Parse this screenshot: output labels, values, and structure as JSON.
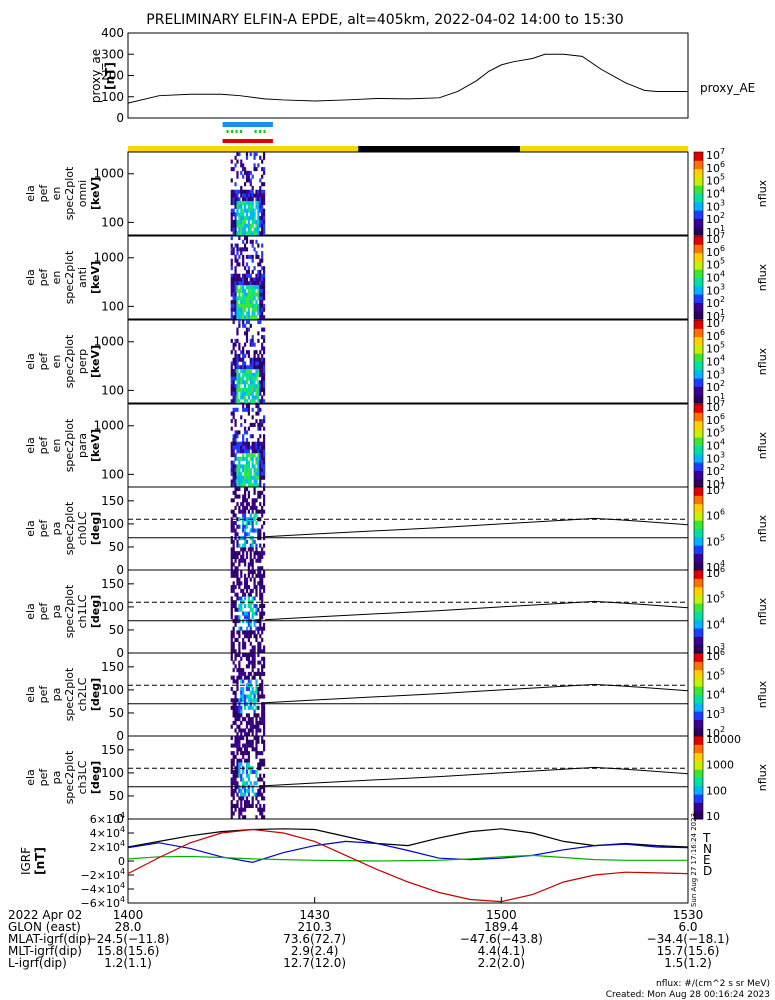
{
  "title": "PRELIMINARY ELFIN-A EPDE, alt=405km, 2022-04-02 14:00 to 15:30",
  "chart_data": [
    {
      "type": "line",
      "panel": "proxy_ae",
      "ylabel": [
        "proxy_ae",
        "[nT]"
      ],
      "legend": "proxy_AE",
      "ylim": [
        0,
        400
      ],
      "yticks": [
        0,
        100,
        200,
        300,
        400
      ],
      "x_minutes": [
        0,
        5,
        10,
        15,
        18,
        22,
        25,
        30,
        35,
        40,
        45,
        50,
        53,
        56,
        58,
        60,
        62,
        65,
        67,
        70,
        73,
        76,
        80,
        83,
        85,
        90
      ],
      "values": [
        70,
        105,
        112,
        112,
        105,
        90,
        85,
        80,
        85,
        92,
        90,
        95,
        125,
        175,
        220,
        250,
        265,
        280,
        300,
        300,
        290,
        230,
        165,
        130,
        125,
        125
      ]
    },
    {
      "type": "line",
      "panel": "status_bar",
      "segments": [
        {
          "start": 0,
          "end": 37,
          "color": "#f5d800"
        },
        {
          "start": 37,
          "end": 63,
          "color": "#000000"
        },
        {
          "start": 63,
          "end": 90,
          "color": "#f5d800"
        }
      ],
      "science_markers": {
        "start": 16,
        "end": 22,
        "colors": [
          "#1e8fe8",
          "#00d000",
          "#e00000"
        ]
      }
    },
    {
      "type": "heatmap",
      "panel": "omni",
      "ylabel": [
        "ela",
        "pef",
        "en",
        "spec2plot",
        "omni",
        "[keV]"
      ],
      "y_log": true,
      "yticks": [
        100,
        1000
      ],
      "ylim": [
        55,
        2800
      ],
      "zlabel": "nflux",
      "z_range": [
        10,
        10000000
      ],
      "z_ticks": [
        "10^1",
        "10^2",
        "10^3",
        "10^4",
        "10^5",
        "10^6",
        "10^7"
      ],
      "active_interval_minutes": [
        16.5,
        22
      ]
    },
    {
      "type": "heatmap",
      "panel": "anti",
      "ylabel": [
        "ela",
        "pef",
        "en",
        "spec2plot",
        "anti",
        "[keV]"
      ],
      "y_log": true,
      "yticks": [
        100,
        1000
      ],
      "ylim": [
        55,
        2800
      ],
      "zlabel": "nflux",
      "z_range": [
        10,
        10000000
      ],
      "z_ticks": [
        "10^1",
        "10^2",
        "10^3",
        "10^4",
        "10^5",
        "10^6",
        "10^7"
      ],
      "active_interval_minutes": [
        16.5,
        22
      ]
    },
    {
      "type": "heatmap",
      "panel": "perp",
      "ylabel": [
        "ela",
        "pef",
        "en",
        "spec2plot",
        "perp",
        "[keV]"
      ],
      "y_log": true,
      "yticks": [
        100,
        1000
      ],
      "ylim": [
        55,
        2800
      ],
      "zlabel": "nflux",
      "z_range": [
        10,
        10000000
      ],
      "z_ticks": [
        "10^1",
        "10^2",
        "10^3",
        "10^4",
        "10^5",
        "10^6",
        "10^7"
      ],
      "active_interval_minutes": [
        16.5,
        22
      ]
    },
    {
      "type": "heatmap",
      "panel": "para",
      "ylabel": [
        "ela",
        "pef",
        "en",
        "spec2plot",
        "para",
        "[keV]"
      ],
      "y_log": true,
      "yticks": [
        100,
        1000
      ],
      "ylim": [
        55,
        2800
      ],
      "zlabel": "nflux",
      "z_range": [
        10,
        10000000
      ],
      "z_ticks": [
        "10^1",
        "10^2",
        "10^3",
        "10^4",
        "10^5",
        "10^6",
        "10^7"
      ],
      "active_interval_minutes": [
        16.5,
        22
      ]
    },
    {
      "type": "heatmap",
      "panel": "ch0LC",
      "ylabel": [
        "ela",
        "pef",
        "pa",
        "spec2plot",
        "ch0LC",
        "[deg]"
      ],
      "ylim": [
        0,
        180
      ],
      "yticks": [
        0,
        50,
        100,
        150
      ],
      "zlabel": "nflux",
      "z_ticks": [
        "10^4",
        "10^5",
        "10^6",
        "10^7"
      ],
      "active_interval_minutes": [
        16.5,
        22
      ]
    },
    {
      "type": "heatmap",
      "panel": "ch1LC",
      "ylabel": [
        "ela",
        "pef",
        "pa",
        "spec2plot",
        "ch1LC",
        "[deg]"
      ],
      "ylim": [
        0,
        180
      ],
      "yticks": [
        0,
        50,
        100,
        150
      ],
      "zlabel": "nflux",
      "z_ticks": [
        "10^3",
        "10^4",
        "10^5",
        "10^6"
      ],
      "active_interval_minutes": [
        16.5,
        22
      ]
    },
    {
      "type": "heatmap",
      "panel": "ch2LC",
      "ylabel": [
        "ela",
        "pef",
        "pa",
        "spec2plot",
        "ch2LC",
        "[deg]"
      ],
      "ylim": [
        0,
        180
      ],
      "yticks": [
        0,
        50,
        100,
        150
      ],
      "zlabel": "nflux",
      "z_ticks": [
        "10^2",
        "10^3",
        "10^4",
        "10^5",
        "10^6"
      ],
      "active_interval_minutes": [
        16.5,
        22
      ]
    },
    {
      "type": "heatmap",
      "panel": "ch3LC",
      "ylabel": [
        "ela",
        "pef",
        "pa",
        "spec2plot",
        "ch3LC",
        "[deg]"
      ],
      "ylim": [
        0,
        180
      ],
      "yticks": [
        0,
        50,
        100,
        150
      ],
      "zlabel": "nflux",
      "z_ticks": [
        "10",
        "100",
        "1000",
        "10000"
      ],
      "active_interval_minutes": [
        16.5,
        22
      ]
    },
    {
      "type": "line",
      "panel": "losscone_overlay",
      "x_minutes": [
        22,
        30,
        40,
        50,
        60,
        70,
        75,
        80,
        90
      ],
      "rising_line": [
        72,
        78,
        85,
        92,
        100,
        108,
        112,
        108,
        98
      ],
      "horizontal_dashed": 110,
      "horizontal_solid": 70
    },
    {
      "type": "line",
      "panel": "IGRF",
      "ylabel": [
        "IGRF",
        "[nT]"
      ],
      "ylim": [
        -60000,
        60000
      ],
      "ytick_labels": [
        "6×10^4",
        "4×10^4",
        "2×10^4",
        "0",
        "−2×10^4",
        "−4×10^4",
        "−6×10^4"
      ],
      "yticks": [
        60000,
        40000,
        20000,
        0,
        -20000,
        -40000,
        -60000
      ],
      "x_minutes": [
        0,
        5,
        10,
        15,
        20,
        25,
        30,
        35,
        40,
        45,
        50,
        55,
        60,
        65,
        70,
        75,
        80,
        85,
        90
      ],
      "series": [
        {
          "name": "T",
          "color": "#000000",
          "values": [
            20000,
            28000,
            36000,
            42000,
            45000,
            46000,
            45000,
            35000,
            25000,
            22000,
            33000,
            42000,
            46000,
            40000,
            28000,
            22000,
            25000,
            22000,
            20000
          ]
        },
        {
          "name": "N",
          "color": "#0000c8",
          "values": [
            19000,
            26000,
            18000,
            6000,
            -2000,
            12000,
            22000,
            28000,
            25000,
            15000,
            4000,
            2000,
            4000,
            8000,
            16000,
            22000,
            24000,
            20000,
            19000
          ]
        },
        {
          "name": "E",
          "color": "#00b000",
          "values": [
            3000,
            6000,
            6500,
            5000,
            3000,
            2000,
            1000,
            500,
            0,
            500,
            1000,
            3000,
            6000,
            8000,
            5000,
            2000,
            1000,
            1000,
            1000
          ]
        },
        {
          "name": "D",
          "color": "#c80000",
          "values": [
            -18000,
            5000,
            26000,
            40000,
            45000,
            40000,
            28000,
            8000,
            -12000,
            -30000,
            -45000,
            -55000,
            -58000,
            -48000,
            -30000,
            -20000,
            -16000,
            -17000,
            -18000
          ]
        }
      ],
      "side_note": "Sun Aug 27 17:16:24 2023"
    }
  ],
  "x_axis": {
    "rows": [
      {
        "label": "2022 Apr 02",
        "values": [
          "1400",
          "1430",
          "1500",
          "1530"
        ]
      },
      {
        "label": "GLON (east)",
        "values": [
          "28.0",
          "210.3",
          "189.4",
          "6.0"
        ]
      },
      {
        "label": "MLAT-igrf(dip)",
        "values": [
          "−24.5(−11.8)",
          "73.6(72.7)",
          "−47.6(−43.8)",
          "−34.4(−18.1)"
        ]
      },
      {
        "label": "MLT-igrf(dip)",
        "values": [
          "15.8(15.6)",
          "2.9(2.4)",
          "4.4(4.1)",
          "15.7(15.6)"
        ]
      },
      {
        "label": "L-igrf(dip)",
        "values": [
          "1.2(1.1)",
          "12.7(12.0)",
          "2.2(2.0)",
          "1.5(1.2)"
        ]
      }
    ]
  },
  "footer": {
    "units": "nflux: #/(cm^2 s sr MeV)",
    "created": "Created: Mon Aug 28 00:16:24 2023"
  }
}
